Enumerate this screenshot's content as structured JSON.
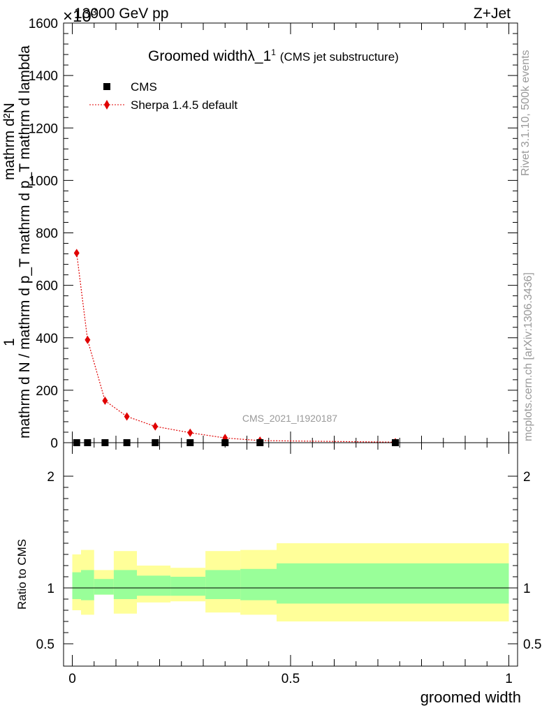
{
  "header": {
    "energy": "13000 GeV pp",
    "process": "Z+Jet",
    "exponent": "×10",
    "exponent_power": "3"
  },
  "chart_data": [
    {
      "type": "line",
      "title": "Groomed width",
      "title_symbol": "λ_1",
      "title_sup": "1",
      "subtitle": "(CMS jet substructure)",
      "ylabel_numerator": "1",
      "ylabel_denominator": "mathrm d N / mathrm d p_T mathrm d p_T mathrm d lambda",
      "ylabel_numerator2": "mathrm d²N",
      "yaxis_multiplier": "×10³",
      "ylim": [
        0,
        1600
      ],
      "xlim": [
        -0.02,
        1.02
      ],
      "yticks": [
        "0",
        "200",
        "400",
        "600",
        "800",
        "1000",
        "1200",
        "1400",
        "1600"
      ],
      "legend_position": "top-left",
      "series": [
        {
          "name": "CMS",
          "marker": "square",
          "color": "#000000",
          "x": [
            0.01,
            0.035,
            0.075,
            0.125,
            0.19,
            0.27,
            0.35,
            0.43,
            0.74
          ],
          "y": [
            0,
            0,
            0,
            0,
            0,
            0,
            0,
            0,
            0
          ]
        },
        {
          "name": "Sherpa 1.4.5 default",
          "marker": "diamond",
          "color": "#e00000",
          "x": [
            0.01,
            0.035,
            0.075,
            0.125,
            0.19,
            0.27,
            0.35,
            0.43,
            0.74
          ],
          "y": [
            723,
            392,
            160,
            100,
            62,
            38,
            18,
            8,
            2
          ]
        }
      ],
      "watermark": "CMS_2021_I1920187",
      "side_text_top": "Rivet 3.1.10,  500k events",
      "side_text_bottom": "mcplots.cern.ch [arXiv:1306.3436]"
    },
    {
      "type": "area",
      "ylabel": "Ratio to CMS",
      "xlabel": "groomed width",
      "ylim": [
        0.3,
        2.3
      ],
      "xlim": [
        -0.02,
        1.02
      ],
      "yticks": [
        "0.5",
        "1",
        "2"
      ],
      "xticks": [
        "0",
        "0.5",
        "1"
      ],
      "bins": [
        {
          "x": [
            0.0,
            0.02
          ],
          "inner": [
            0.9,
            1.14
          ],
          "outer": [
            0.8,
            1.3
          ]
        },
        {
          "x": [
            0.02,
            0.05
          ],
          "inner": [
            0.89,
            1.16
          ],
          "outer": [
            0.76,
            1.34
          ]
        },
        {
          "x": [
            0.05,
            0.095
          ],
          "inner": [
            0.94,
            1.08
          ],
          "outer": [
            0.94,
            1.16
          ]
        },
        {
          "x": [
            0.095,
            0.148
          ],
          "inner": [
            0.9,
            1.16
          ],
          "outer": [
            0.77,
            1.33
          ]
        },
        {
          "x": [
            0.148,
            0.225
          ],
          "inner": [
            0.93,
            1.11
          ],
          "outer": [
            0.87,
            1.2
          ]
        },
        {
          "x": [
            0.225,
            0.305
          ],
          "inner": [
            0.93,
            1.1
          ],
          "outer": [
            0.88,
            1.18
          ]
        },
        {
          "x": [
            0.305,
            0.385
          ],
          "inner": [
            0.9,
            1.16
          ],
          "outer": [
            0.78,
            1.33
          ]
        },
        {
          "x": [
            0.385,
            0.468
          ],
          "inner": [
            0.89,
            1.17
          ],
          "outer": [
            0.76,
            1.34
          ]
        },
        {
          "x": [
            0.468,
            1.0
          ],
          "inner": [
            0.86,
            1.22
          ],
          "outer": [
            0.7,
            1.4
          ]
        }
      ],
      "inner_color": "#99ff99",
      "outer_color": "#ffff99",
      "reference_line": 1
    }
  ]
}
